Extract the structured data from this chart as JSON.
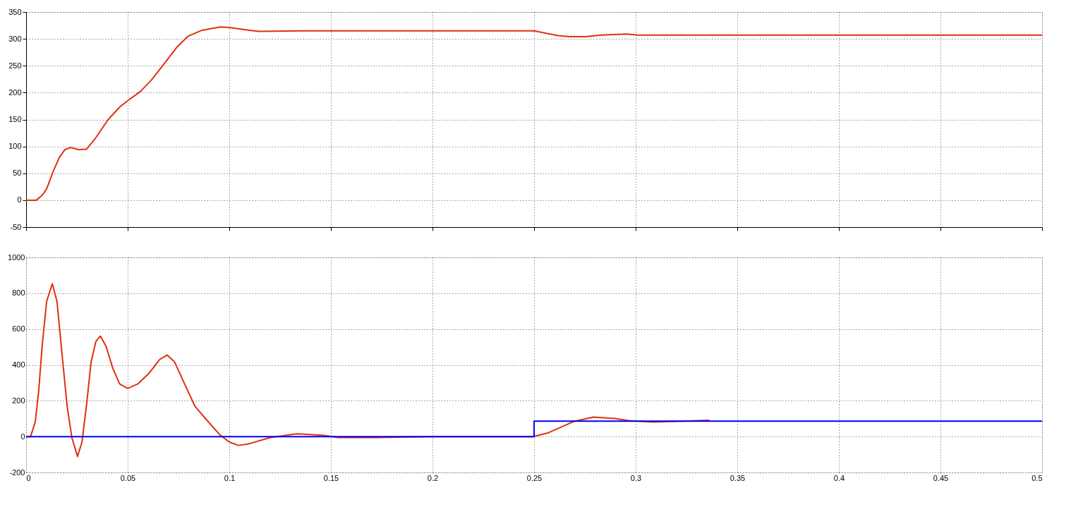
{
  "chart_data": [
    {
      "type": "line",
      "xlim": [
        0,
        0.5
      ],
      "xticks": [
        0,
        0.05,
        0.1,
        0.15,
        0.2,
        0.25,
        0.3,
        0.35,
        0.4,
        0.45,
        0.5
      ],
      "ylim": [
        -50,
        350
      ],
      "yticks": [
        -50,
        0,
        50,
        100,
        150,
        200,
        250,
        300,
        350
      ],
      "grid": true,
      "tick_labels": "y",
      "marker": "none",
      "line_style": "solid",
      "series": [
        {
          "color": "#e03010",
          "x": [
            0,
            0.005,
            0.0079,
            0.0101,
            0.0135,
            0.0163,
            0.0191,
            0.0219,
            0.0258,
            0.0298,
            0.0337,
            0.0404,
            0.046,
            0.05,
            0.0562,
            0.0618,
            0.0674,
            0.0741,
            0.0797,
            0.0865,
            0.0954,
            0.1,
            0.11,
            0.1146,
            0.1348,
            0.2,
            0.25,
            0.2617,
            0.2673,
            0.2752,
            0.283,
            0.2954,
            0.301,
            0.4,
            0.5
          ],
          "values": [
            0,
            0,
            9,
            21,
            55,
            79,
            94,
            98,
            94,
            95,
            113,
            150,
            173,
            185,
            202,
            224,
            251,
            284,
            305,
            316,
            322,
            321,
            316,
            314,
            315,
            315,
            315,
            306,
            304,
            304,
            307,
            309,
            307,
            307,
            307
          ]
        }
      ]
    },
    {
      "type": "line",
      "xlim": [
        0,
        0.5
      ],
      "xticks": [
        0,
        0.05,
        0.1,
        0.15,
        0.2,
        0.25,
        0.3,
        0.35,
        0.4,
        0.45,
        0.5
      ],
      "ylim": [
        -200,
        1000
      ],
      "yticks": [
        -200,
        0,
        200,
        400,
        600,
        800,
        1000
      ],
      "grid": true,
      "marker": "none",
      "line_style": "solid",
      "series": [
        {
          "color": "#e03010",
          "x": [
            0,
            0.0022,
            0.0045,
            0.0062,
            0.0079,
            0.0101,
            0.0129,
            0.0152,
            0.0174,
            0.0202,
            0.0225,
            0.0253,
            0.0275,
            0.0298,
            0.032,
            0.0343,
            0.0365,
            0.0393,
            0.0427,
            0.046,
            0.05,
            0.055,
            0.0607,
            0.0657,
            0.0694,
            0.073,
            0.0775,
            0.0831,
            0.0887,
            0.0955,
            0.1,
            0.1044,
            0.109,
            0.1202,
            0.1325,
            0.134,
            0.1469,
            0.1536,
            0.1724,
            0.2,
            0.2496,
            0.2567,
            0.2694,
            0.2792,
            0.2898,
            0.2965,
            0.3086,
            0.3363
          ],
          "values": [
            0,
            0,
            82,
            256,
            505,
            754,
            853,
            754,
            493,
            169,
            -5,
            -111,
            -30,
            182,
            418,
            530,
            561,
            505,
            381,
            294,
            269,
            294,
            356,
            430,
            455,
            418,
            306,
            169,
            95,
            8,
            -30,
            -49,
            -42,
            -5,
            14,
            15,
            7,
            -5,
            -5,
            0,
            0,
            20,
            84,
            109,
            101,
            89,
            81,
            91
          ]
        },
        {
          "color": "#0000ff",
          "x": [
            0,
            0.25,
            0.25,
            0.5
          ],
          "values": [
            0,
            0,
            86,
            86
          ]
        }
      ]
    }
  ]
}
